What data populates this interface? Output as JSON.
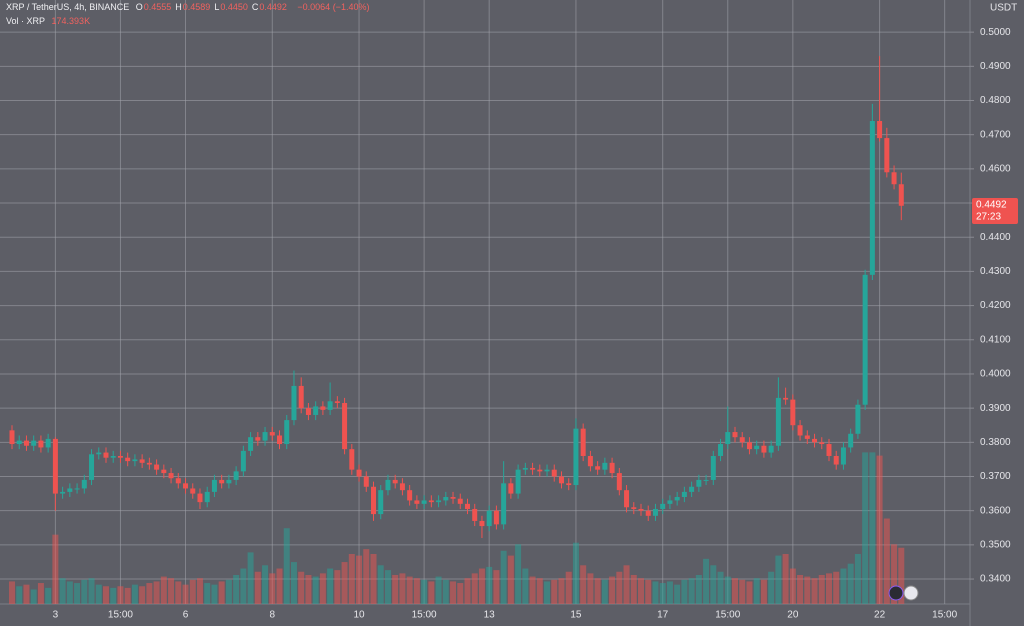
{
  "chart_data": {
    "type": "candlestick",
    "title": "XRP / TetherUS, 4h, BINANCE",
    "ohlc_legend": [
      {
        "label": "O",
        "value": "0.4555"
      },
      {
        "label": "H",
        "value": "0.4589"
      },
      {
        "label": "L",
        "value": "0.4450"
      },
      {
        "label": "C",
        "value": "0.4492"
      }
    ],
    "change": "−0.0064 (−1.40%)",
    "volume_title": "Vol · XRP",
    "volume_label": "174.393K",
    "axis_unit": "USDT",
    "price_tag": {
      "price": "0.4492",
      "countdown": "27:23"
    },
    "up_color": "#26a69a",
    "down_color": "#ef5350",
    "grid": true,
    "categories": [
      null,
      null,
      null,
      null,
      null,
      null,
      "3",
      null,
      null,
      null,
      null,
      null,
      null,
      null,
      null,
      "15:00",
      null,
      null,
      null,
      null,
      null,
      null,
      null,
      null,
      "6",
      null,
      null,
      null,
      null,
      null,
      null,
      null,
      null,
      null,
      null,
      null,
      "8",
      null,
      null,
      null,
      null,
      null,
      null,
      null,
      null,
      null,
      null,
      null,
      "10",
      null,
      null,
      null,
      null,
      null,
      null,
      null,
      null,
      "15:00",
      null,
      null,
      null,
      null,
      null,
      null,
      null,
      null,
      "13",
      null,
      null,
      null,
      null,
      null,
      null,
      null,
      null,
      null,
      null,
      null,
      "15",
      null,
      null,
      null,
      null,
      null,
      null,
      null,
      null,
      null,
      null,
      null,
      "17",
      null,
      null,
      null,
      null,
      null,
      null,
      null,
      null,
      "15:00",
      null,
      null,
      null,
      null,
      null,
      null,
      null,
      null,
      "20",
      null,
      null,
      null,
      null,
      null,
      null,
      null,
      null,
      null,
      null,
      null,
      "22",
      null,
      null,
      null,
      null,
      null,
      null,
      null,
      null,
      "15:00"
    ],
    "open": [
      0.3835,
      0.3795,
      0.3805,
      0.379,
      0.3805,
      0.3785,
      0.381,
      0.365,
      0.3655,
      0.3665,
      0.3665,
      0.369,
      0.3765,
      0.377,
      0.3755,
      0.376,
      0.3755,
      0.3745,
      0.375,
      0.374,
      0.3735,
      0.372,
      0.371,
      0.3695,
      0.368,
      0.3665,
      0.365,
      0.3625,
      0.3655,
      0.369,
      0.368,
      0.369,
      0.3715,
      0.3775,
      0.3815,
      0.3805,
      0.383,
      0.382,
      0.3795,
      0.3865,
      0.3965,
      0.39,
      0.388,
      0.3905,
      0.3895,
      0.392,
      0.3915,
      0.378,
      0.372,
      0.37,
      0.367,
      0.359,
      0.366,
      0.369,
      0.368,
      0.366,
      0.363,
      0.362,
      0.363,
      0.3625,
      0.363,
      0.364,
      0.3635,
      0.362,
      0.3605,
      0.357,
      0.3555,
      0.36,
      0.356,
      0.368,
      0.365,
      0.372,
      0.3725,
      0.372,
      0.3715,
      0.372,
      0.37,
      0.368,
      0.3675,
      0.384,
      0.376,
      0.373,
      0.372,
      0.374,
      0.371,
      0.366,
      0.361,
      0.3605,
      0.36,
      0.3585,
      0.3605,
      0.362,
      0.363,
      0.364,
      0.3655,
      0.367,
      0.369,
      0.369,
      0.376,
      0.3795,
      0.383,
      0.3815,
      0.38,
      0.378,
      0.379,
      0.377,
      0.379,
      0.393,
      0.3925,
      0.385,
      0.382,
      0.381,
      0.38,
      0.3795,
      0.376,
      0.3735,
      0.3785,
      0.3825,
      0.391,
      0.429,
      0.474,
      0.469,
      0.459,
      0.4555,
      null,
      null,
      null,
      null,
      null,
      null
    ],
    "high": [
      0.385,
      0.382,
      0.382,
      0.382,
      0.382,
      0.3825,
      0.3815,
      0.367,
      0.368,
      0.368,
      0.3705,
      0.378,
      0.3785,
      0.3785,
      0.3775,
      0.3775,
      0.377,
      0.3765,
      0.3765,
      0.3755,
      0.375,
      0.3735,
      0.3725,
      0.371,
      0.3695,
      0.368,
      0.3665,
      0.367,
      0.3705,
      0.3705,
      0.3705,
      0.373,
      0.379,
      0.383,
      0.383,
      0.3845,
      0.3845,
      0.3835,
      0.388,
      0.401,
      0.399,
      0.3915,
      0.392,
      0.392,
      0.3975,
      0.3935,
      0.393,
      0.3795,
      0.3735,
      0.3715,
      0.3685,
      0.3675,
      0.3705,
      0.3705,
      0.3695,
      0.3675,
      0.3645,
      0.3645,
      0.3645,
      0.3645,
      0.3655,
      0.3655,
      0.365,
      0.3635,
      0.362,
      0.3585,
      0.3615,
      0.3615,
      0.3745,
      0.3695,
      0.3735,
      0.374,
      0.374,
      0.3735,
      0.3735,
      0.3735,
      0.3715,
      0.3695,
      0.387,
      0.3855,
      0.3775,
      0.3745,
      0.3755,
      0.3755,
      0.3725,
      0.3675,
      0.3625,
      0.362,
      0.3615,
      0.362,
      0.3635,
      0.3645,
      0.3655,
      0.367,
      0.3685,
      0.3705,
      0.3705,
      0.3775,
      0.381,
      0.3905,
      0.3845,
      0.383,
      0.3815,
      0.3805,
      0.3805,
      0.3805,
      0.399,
      0.396,
      0.394,
      0.3865,
      0.3835,
      0.3825,
      0.3815,
      0.381,
      0.3775,
      0.38,
      0.384,
      0.3925,
      0.4305,
      0.479,
      0.493,
      0.472,
      0.461,
      0.4589,
      null,
      null,
      null,
      null,
      null,
      null
    ],
    "low": [
      0.378,
      0.378,
      0.3775,
      0.3775,
      0.377,
      0.377,
      0.36,
      0.3635,
      0.364,
      0.365,
      0.365,
      0.3675,
      0.375,
      0.374,
      0.374,
      0.374,
      0.373,
      0.373,
      0.3725,
      0.372,
      0.3705,
      0.3695,
      0.368,
      0.3665,
      0.365,
      0.3635,
      0.3605,
      0.361,
      0.364,
      0.3665,
      0.3665,
      0.3675,
      0.37,
      0.376,
      0.379,
      0.379,
      0.3805,
      0.378,
      0.378,
      0.385,
      0.3885,
      0.3865,
      0.3865,
      0.388,
      0.388,
      0.39,
      0.3765,
      0.3705,
      0.3685,
      0.3655,
      0.357,
      0.3575,
      0.3645,
      0.3665,
      0.3645,
      0.3615,
      0.3605,
      0.3605,
      0.361,
      0.361,
      0.3615,
      0.362,
      0.3605,
      0.359,
      0.3555,
      0.352,
      0.354,
      0.3545,
      0.3545,
      0.3635,
      0.3635,
      0.3705,
      0.3705,
      0.37,
      0.37,
      0.3685,
      0.3665,
      0.366,
      0.366,
      0.3745,
      0.3715,
      0.3705,
      0.3705,
      0.3695,
      0.3645,
      0.3595,
      0.359,
      0.3585,
      0.357,
      0.357,
      0.359,
      0.3605,
      0.3615,
      0.3625,
      0.364,
      0.3655,
      0.3675,
      0.3675,
      0.3745,
      0.378,
      0.38,
      0.3785,
      0.3765,
      0.3765,
      0.3755,
      0.3755,
      0.3775,
      0.391,
      0.3835,
      0.3805,
      0.3795,
      0.3785,
      0.378,
      0.3745,
      0.372,
      0.372,
      0.377,
      0.381,
      0.3895,
      0.4275,
      0.468,
      0.4575,
      0.454,
      0.445,
      null,
      null,
      null,
      null,
      null,
      null
    ],
    "close": [
      0.3795,
      0.3805,
      0.379,
      0.3805,
      0.3785,
      0.381,
      0.365,
      0.3655,
      0.3665,
      0.3665,
      0.369,
      0.3765,
      0.377,
      0.3755,
      0.376,
      0.3755,
      0.3745,
      0.375,
      0.374,
      0.3735,
      0.372,
      0.371,
      0.3695,
      0.368,
      0.3665,
      0.365,
      0.3625,
      0.3655,
      0.369,
      0.368,
      0.369,
      0.3715,
      0.3775,
      0.3815,
      0.3805,
      0.383,
      0.382,
      0.3795,
      0.3865,
      0.3965,
      0.39,
      0.388,
      0.3905,
      0.3895,
      0.392,
      0.3915,
      0.378,
      0.372,
      0.37,
      0.367,
      0.359,
      0.366,
      0.369,
      0.368,
      0.366,
      0.363,
      0.362,
      0.363,
      0.3625,
      0.363,
      0.364,
      0.3635,
      0.362,
      0.3605,
      0.357,
      0.3555,
      0.36,
      0.356,
      0.368,
      0.365,
      0.372,
      0.3725,
      0.372,
      0.3715,
      0.372,
      0.37,
      0.368,
      0.3675,
      0.384,
      0.376,
      0.373,
      0.372,
      0.374,
      0.371,
      0.366,
      0.361,
      0.3605,
      0.36,
      0.3585,
      0.3605,
      0.362,
      0.363,
      0.364,
      0.3655,
      0.367,
      0.369,
      0.369,
      0.376,
      0.3795,
      0.383,
      0.3815,
      0.38,
      0.378,
      0.379,
      0.377,
      0.379,
      0.393,
      0.3925,
      0.385,
      0.382,
      0.381,
      0.38,
      0.3795,
      0.376,
      0.3735,
      0.3785,
      0.3825,
      0.391,
      0.429,
      0.474,
      0.469,
      0.459,
      0.4555,
      0.4492,
      null,
      null,
      null,
      null,
      null,
      null
    ],
    "volume": [
      70,
      55,
      60,
      45,
      65,
      50,
      215,
      80,
      70,
      65,
      75,
      80,
      60,
      55,
      50,
      55,
      50,
      60,
      55,
      65,
      70,
      85,
      80,
      70,
      60,
      75,
      80,
      65,
      60,
      70,
      75,
      90,
      110,
      160,
      100,
      120,
      95,
      110,
      235,
      130,
      100,
      90,
      85,
      95,
      110,
      105,
      130,
      155,
      150,
      170,
      155,
      120,
      105,
      90,
      95,
      85,
      80,
      75,
      70,
      85,
      75,
      70,
      65,
      80,
      95,
      110,
      115,
      105,
      165,
      150,
      185,
      110,
      85,
      80,
      70,
      75,
      80,
      100,
      190,
      120,
      95,
      80,
      75,
      85,
      100,
      120,
      90,
      80,
      75,
      70,
      65,
      70,
      60,
      75,
      80,
      90,
      140,
      120,
      100,
      85,
      80,
      75,
      70,
      80,
      75,
      100,
      150,
      155,
      110,
      90,
      85,
      80,
      90,
      95,
      100,
      110,
      125,
      155,
      470,
      470,
      460,
      265,
      185,
      174.393,
      null,
      null,
      null,
      null,
      null,
      null
    ],
    "volume_ylim": [
      0,
      620
    ],
    "ylim": [
      0.3327,
      0.5094
    ],
    "yticks": [
      {
        "value": 0.34,
        "label": "0.3400"
      },
      {
        "value": 0.35,
        "label": "0.3500"
      },
      {
        "value": 0.36,
        "label": "0.3600"
      },
      {
        "value": 0.37,
        "label": "0.3700"
      },
      {
        "value": 0.38,
        "label": "0.3800"
      },
      {
        "value": 0.39,
        "label": "0.3900"
      },
      {
        "value": 0.4,
        "label": "0.4000"
      },
      {
        "value": 0.41,
        "label": "0.4100"
      },
      {
        "value": 0.42,
        "label": "0.4200"
      },
      {
        "value": 0.43,
        "label": "0.4300"
      },
      {
        "value": 0.44,
        "label": "0.4400"
      },
      {
        "value": 0.45,
        "label": "0.4500"
      },
      {
        "value": 0.46,
        "label": "0.4600"
      },
      {
        "value": 0.47,
        "label": "0.4700"
      },
      {
        "value": 0.48,
        "label": "0.4800"
      },
      {
        "value": 0.49,
        "label": "0.4900"
      },
      {
        "value": 0.5,
        "label": "0.5000"
      }
    ]
  }
}
